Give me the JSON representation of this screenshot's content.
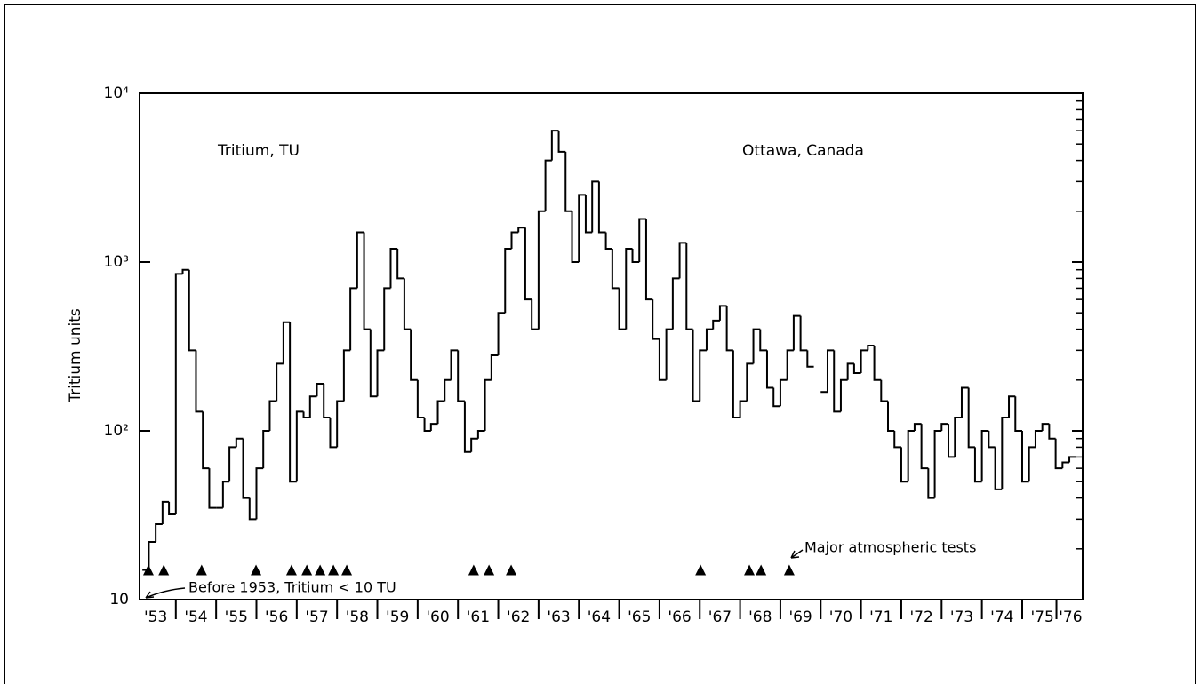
{
  "chart_data": {
    "type": "step",
    "annotations": {
      "left": "Tritium, TU",
      "right": "Ottawa, Canada",
      "before": "Before 1953, Tritium < 10 TU",
      "tests": "Major atmospheric tests"
    },
    "ylabel": "Tritium units",
    "color": "#000000",
    "log_y": true,
    "xlim": [
      1953.1,
      1976.5
    ],
    "ylim": [
      10,
      10000
    ],
    "yticks": [
      10,
      {
        "value": 100,
        "label": "10²"
      },
      {
        "value": 1000,
        "label": "10³"
      },
      {
        "value": 10000,
        "label": "10⁴"
      }
    ],
    "xticks": [
      {
        "value": 1953.5,
        "label": "'53"
      },
      {
        "value": 1954.5,
        "label": "'54"
      },
      {
        "value": 1955.5,
        "label": "'55"
      },
      {
        "value": 1956.5,
        "label": "'56"
      },
      {
        "value": 1957.5,
        "label": "'57"
      },
      {
        "value": 1958.5,
        "label": "'58"
      },
      {
        "value": 1959.5,
        "label": "'59"
      },
      {
        "value": 1960.5,
        "label": "'60"
      },
      {
        "value": 1961.5,
        "label": "'61"
      },
      {
        "value": 1962.5,
        "label": "'62"
      },
      {
        "value": 1963.5,
        "label": "'63"
      },
      {
        "value": 1964.5,
        "label": "'64"
      },
      {
        "value": 1965.5,
        "label": "'65"
      },
      {
        "value": 1966.5,
        "label": "'66"
      },
      {
        "value": 1967.5,
        "label": "'67"
      },
      {
        "value": 1968.5,
        "label": "'68"
      },
      {
        "value": 1969.5,
        "label": "'69"
      },
      {
        "value": 1970.5,
        "label": "'70"
      },
      {
        "value": 1971.5,
        "label": "'71"
      },
      {
        "value": 1972.5,
        "label": "'72"
      },
      {
        "value": 1973.5,
        "label": "'73"
      },
      {
        "value": 1974.5,
        "label": "'74"
      },
      {
        "value": 1975.5,
        "label": "'75"
      },
      {
        "value": 1976.2,
        "label": "'76"
      }
    ],
    "x": [
      1953.17,
      1953.33,
      1953.5,
      1953.67,
      1953.83,
      1954,
      1954.17,
      1954.33,
      1954.5,
      1954.67,
      1954.83,
      1955,
      1955.17,
      1955.33,
      1955.5,
      1955.67,
      1955.83,
      1956,
      1956.17,
      1956.33,
      1956.5,
      1956.67,
      1956.83,
      1957,
      1957.17,
      1957.33,
      1957.5,
      1957.67,
      1957.83,
      1958,
      1958.17,
      1958.33,
      1958.5,
      1958.67,
      1958.83,
      1959,
      1959.17,
      1959.33,
      1959.5,
      1959.67,
      1959.83,
      1960,
      1960.17,
      1960.33,
      1960.5,
      1960.67,
      1960.83,
      1961,
      1961.17,
      1961.33,
      1961.5,
      1961.67,
      1961.83,
      1962,
      1962.17,
      1962.33,
      1962.5,
      1962.67,
      1962.83,
      1963,
      1963.17,
      1963.33,
      1963.5,
      1963.67,
      1963.83,
      1964,
      1964.17,
      1964.33,
      1964.5,
      1964.67,
      1964.83,
      1965,
      1965.17,
      1965.33,
      1965.5,
      1965.67,
      1965.83,
      1966,
      1966.17,
      1966.33,
      1966.5,
      1966.67,
      1966.83,
      1967,
      1967.17,
      1967.33,
      1967.5,
      1967.67,
      1967.83,
      1968,
      1968.17,
      1968.33,
      1968.5,
      1968.67,
      1968.83,
      1969,
      1969.17,
      1969.33,
      1969.5,
      1969.67,
      1969.83,
      1970,
      1970.17,
      1970.33,
      1970.5,
      1970.67,
      1970.83,
      1971,
      1971.17,
      1971.33,
      1971.5,
      1971.67,
      1971.83,
      1972,
      1972.17,
      1972.33,
      1972.5,
      1972.67,
      1972.83,
      1973,
      1973.17,
      1973.33,
      1973.5,
      1973.67,
      1973.83,
      1974,
      1974.17,
      1974.33,
      1974.5,
      1974.67,
      1974.83,
      1975,
      1975.17,
      1975.33,
      1975.5,
      1975.67,
      1975.83,
      1976,
      1976.17
    ],
    "values": [
      15,
      22,
      28,
      38,
      32,
      850,
      900,
      300,
      130,
      60,
      35,
      35,
      50,
      80,
      90,
      40,
      30,
      60,
      100,
      150,
      250,
      440,
      50,
      130,
      120,
      160,
      190,
      120,
      80,
      150,
      300,
      700,
      1500,
      400,
      160,
      300,
      700,
      1200,
      800,
      400,
      200,
      120,
      100,
      110,
      150,
      200,
      300,
      150,
      75,
      90,
      100,
      200,
      280,
      500,
      1200,
      1500,
      1600,
      600,
      400,
      2000,
      4000,
      6000,
      4500,
      2000,
      1000,
      2500,
      1500,
      3000,
      1500,
      1200,
      700,
      400,
      1200,
      1000,
      1800,
      600,
      350,
      200,
      400,
      800,
      1300,
      400,
      150,
      300,
      400,
      450,
      550,
      300,
      120,
      150,
      250,
      400,
      300,
      180,
      140,
      200,
      300,
      480,
      300,
      240,
      null,
      170,
      300,
      130,
      200,
      250,
      220,
      300,
      320,
      200,
      150,
      100,
      80,
      50,
      100,
      110,
      60,
      40,
      100,
      110,
      70,
      120,
      180,
      80,
      50,
      100,
      80,
      45,
      120,
      160,
      100,
      50,
      80,
      100,
      110,
      90,
      60,
      65,
      70
    ],
    "tests": {
      "x": [
        1953.32,
        1953.7,
        1954.64,
        1955.99,
        1956.87,
        1957.25,
        1957.58,
        1957.91,
        1958.24,
        1961.39,
        1961.77,
        1962.32,
        1967.02,
        1968.23,
        1968.52,
        1969.22
      ],
      "y": 15
    }
  }
}
